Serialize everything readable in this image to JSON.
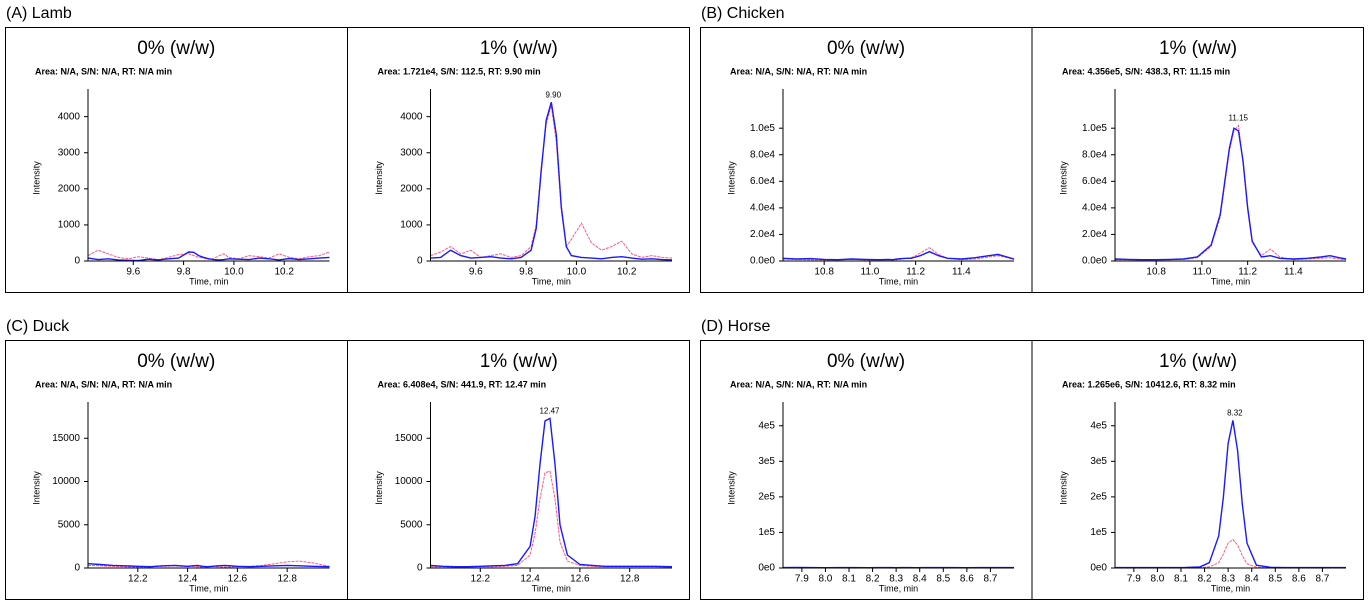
{
  "panel_labels": [
    "(A) Lamb",
    "(B) Chicken",
    "(C) Duck",
    "(D) Horse"
  ],
  "chart_data": [
    {
      "type": "line",
      "title": "0% (w/w)",
      "annotation": "Area: N/A, S/N: N/A, RT: N/A min",
      "ylabel": "Intensity",
      "xlabel": "Time, min",
      "x": [
        9.42,
        9.46,
        9.5,
        9.54,
        9.58,
        9.62,
        9.66,
        9.7,
        9.74,
        9.78,
        9.82,
        9.84,
        9.86,
        9.88,
        9.9,
        9.92,
        9.94,
        9.96,
        9.98,
        10.02,
        10.06,
        10.1,
        10.14,
        10.18,
        10.22,
        10.26,
        10.3,
        10.34,
        10.38
      ],
      "xlim": [
        9.42,
        10.38
      ],
      "xticks": [
        9.6,
        9.8,
        {
          "value": 10,
          "label": "10.0"
        },
        10.2
      ],
      "ylim": [
        0,
        4600
      ],
      "yticks": [
        0,
        1000,
        2000,
        3000,
        4000
      ],
      "series": [
        {
          "color": "#ff5a80",
          "values": [
            150,
            300,
            200,
            100,
            60,
            120,
            80,
            40,
            100,
            180,
            200,
            150,
            100,
            80,
            50,
            60,
            140,
            200,
            100,
            60,
            150,
            120,
            80,
            200,
            100,
            60,
            120,
            150,
            250
          ]
        },
        {
          "color": "#1a1aff",
          "values": [
            80,
            40,
            60,
            30,
            20,
            10,
            50,
            30,
            60,
            80,
            250,
            240,
            150,
            100,
            60,
            40,
            30,
            40,
            60,
            50,
            40,
            80,
            60,
            30,
            70,
            40,
            60,
            80,
            100
          ]
        }
      ]
    },
    {
      "type": "line",
      "title": "1% (w/w)",
      "annotation": "Area: 1.721e4, S/N: 112.5, RT: 9.90 min",
      "ylabel": "Intensity",
      "xlabel": "Time, min",
      "x": [
        9.42,
        9.46,
        9.5,
        9.54,
        9.58,
        9.62,
        9.66,
        9.7,
        9.74,
        9.78,
        9.82,
        9.84,
        9.86,
        9.88,
        9.9,
        9.92,
        9.94,
        9.96,
        9.98,
        10.02,
        10.06,
        10.1,
        10.14,
        10.18,
        10.22,
        10.26,
        10.3,
        10.34,
        10.38
      ],
      "xlim": [
        9.42,
        10.38
      ],
      "xticks": [
        9.6,
        9.8,
        {
          "value": 10,
          "label": "10.0"
        },
        10.2
      ],
      "ylim": [
        0,
        4600
      ],
      "yticks": [
        0,
        1000,
        2000,
        3000,
        4000
      ],
      "peak_label": {
        "label": "9.90",
        "x": 9.9,
        "y": 4400
      },
      "series": [
        {
          "color": "#ff5a80",
          "values": [
            150,
            250,
            400,
            200,
            300,
            100,
            150,
            200,
            100,
            150,
            400,
            1000,
            2600,
            3800,
            4300,
            3300,
            1400,
            400,
            600,
            1050,
            500,
            300,
            400,
            550,
            200,
            100,
            150,
            100,
            80
          ]
        },
        {
          "color": "#1a1aff",
          "values": [
            80,
            100,
            300,
            150,
            80,
            100,
            120,
            80,
            60,
            100,
            300,
            900,
            2500,
            3900,
            4400,
            3500,
            1500,
            400,
            150,
            100,
            80,
            60,
            100,
            120,
            80,
            50,
            60,
            40,
            30
          ]
        }
      ]
    },
    {
      "type": "line",
      "title": "0% (w/w)",
      "annotation": "Area: N/A, S/N: N/A, RT: N/A min",
      "ylabel": "Intensity",
      "xlabel": "Time, min",
      "x": [
        10.62,
        10.68,
        10.74,
        10.8,
        10.86,
        10.92,
        10.98,
        11.04,
        11.08,
        11.1,
        11.12,
        11.14,
        11.16,
        11.18,
        11.2,
        11.22,
        11.26,
        11.3,
        11.34,
        11.4,
        11.46,
        11.52,
        11.56,
        11.6,
        11.63
      ],
      "xlim": [
        10.62,
        11.63
      ],
      "xticks": [
        10.8,
        {
          "value": 11,
          "label": "11.0"
        },
        11.2,
        11.4
      ],
      "ylim": [
        0,
        125000
      ],
      "yticks": [
        {
          "value": 0,
          "label": "0.0e0"
        },
        {
          "value": 20000,
          "label": "2.0e4"
        },
        {
          "value": 40000,
          "label": "4.0e4"
        },
        {
          "value": 60000,
          "label": "6.0e4"
        },
        {
          "value": 80000,
          "label": "8.0e4"
        },
        {
          "value": 100000,
          "label": "1.0e5"
        }
      ],
      "series": [
        {
          "color": "#ff5a80",
          "values": [
            1500,
            1200,
            1000,
            800,
            1000,
            1200,
            800,
            1000,
            1000,
            800,
            1000,
            1500,
            2000,
            2500,
            4000,
            6000,
            10000,
            5000,
            2000,
            1000,
            1500,
            3000,
            4000,
            2500,
            1000
          ]
        },
        {
          "color": "#1a1aff",
          "values": [
            2000,
            1500,
            1800,
            1200,
            1000,
            1500,
            1200,
            1000,
            1200,
            1000,
            1500,
            1800,
            2000,
            2000,
            3000,
            4000,
            7000,
            4000,
            2000,
            1500,
            2500,
            4000,
            5000,
            3000,
            1500
          ]
        }
      ]
    },
    {
      "type": "line",
      "title": "1% (w/w)",
      "annotation": "Area: 4.356e5, S/N: 438.3, RT: 11.15 min",
      "ylabel": "Intensity",
      "xlabel": "Time, min",
      "x": [
        10.62,
        10.68,
        10.74,
        10.8,
        10.86,
        10.92,
        10.98,
        11.04,
        11.08,
        11.1,
        11.12,
        11.14,
        11.16,
        11.18,
        11.2,
        11.22,
        11.26,
        11.3,
        11.34,
        11.4,
        11.46,
        11.52,
        11.56,
        11.6,
        11.63
      ],
      "xlim": [
        10.62,
        11.63
      ],
      "xticks": [
        10.8,
        {
          "value": 11,
          "label": "11.0"
        },
        11.2,
        11.4
      ],
      "ylim": [
        0,
        125000
      ],
      "yticks": [
        {
          "value": 0,
          "label": "0.0e0"
        },
        {
          "value": 20000,
          "label": "2.0e4"
        },
        {
          "value": 40000,
          "label": "4.0e4"
        },
        {
          "value": 60000,
          "label": "6.0e4"
        },
        {
          "value": 80000,
          "label": "8.0e4"
        },
        {
          "value": 100000,
          "label": "1.0e5"
        }
      ],
      "peak_label": {
        "label": "11.15",
        "x": 11.15,
        "y": 102000
      },
      "series": [
        {
          "color": "#ff5a80",
          "values": [
            1000,
            1000,
            800,
            1000,
            1000,
            1200,
            2500,
            11000,
            33000,
            58000,
            83000,
            98000,
            102000,
            73000,
            38000,
            14000,
            4000,
            9000,
            3000,
            1000,
            1500,
            2000,
            2500,
            1500,
            1000
          ]
        },
        {
          "color": "#1a1aff",
          "values": [
            1500,
            1200,
            1000,
            1000,
            1200,
            1500,
            3000,
            12000,
            35000,
            60000,
            85000,
            100000,
            98000,
            75000,
            40000,
            15000,
            3000,
            4000,
            2000,
            1500,
            2000,
            3000,
            4000,
            2500,
            1500
          ]
        }
      ]
    },
    {
      "type": "line",
      "title": "0% (w/w)",
      "annotation": "Area: N/A, S/N: N/A, RT: N/A min",
      "ylabel": "Intensity",
      "xlabel": "Time, min",
      "x": [
        12.0,
        12.05,
        12.1,
        12.15,
        12.2,
        12.25,
        12.3,
        12.35,
        12.4,
        12.42,
        12.44,
        12.46,
        12.48,
        12.5,
        12.52,
        12.55,
        12.6,
        12.65,
        12.7,
        12.75,
        12.8,
        12.85,
        12.9,
        12.97
      ],
      "xlim": [
        12.0,
        12.97
      ],
      "xticks": [
        12.2,
        12.4,
        12.6,
        12.8
      ],
      "ylim": [
        0,
        18500
      ],
      "yticks": [
        0,
        5000,
        10000,
        15000
      ],
      "series": [
        {
          "color": "#ff5a80",
          "values": [
            300,
            250,
            200,
            150,
            100,
            150,
            200,
            250,
            150,
            200,
            150,
            100,
            150,
            200,
            150,
            100,
            150,
            200,
            300,
            500,
            700,
            800,
            600,
            200
          ]
        },
        {
          "color": "#1a1aff",
          "values": [
            500,
            400,
            300,
            250,
            200,
            150,
            250,
            300,
            200,
            250,
            300,
            200,
            150,
            200,
            250,
            300,
            200,
            150,
            200,
            250,
            300,
            250,
            200,
            150
          ]
        }
      ]
    },
    {
      "type": "line",
      "title": "1% (w/w)",
      "annotation": "Area: 6.408e4, S/N: 441.9, RT: 12.47 min",
      "ylabel": "Intensity",
      "xlabel": "Time, min",
      "x": [
        12.0,
        12.05,
        12.1,
        12.15,
        12.2,
        12.25,
        12.3,
        12.35,
        12.4,
        12.42,
        12.44,
        12.46,
        12.48,
        12.5,
        12.52,
        12.55,
        12.6,
        12.65,
        12.7,
        12.75,
        12.8,
        12.85,
        12.9,
        12.97
      ],
      "xlim": [
        12.0,
        12.97
      ],
      "xticks": [
        12.2,
        12.4,
        12.6,
        12.8
      ],
      "ylim": [
        0,
        18500
      ],
      "yticks": [
        0,
        5000,
        10000,
        15000
      ],
      "peak_label": {
        "label": "12.47",
        "x": 12.47,
        "y": 17300
      },
      "series": [
        {
          "color": "#ff5a80",
          "values": [
            150,
            150,
            100,
            100,
            150,
            150,
            200,
            300,
            1500,
            4000,
            8000,
            11000,
            11200,
            8000,
            3000,
            800,
            300,
            200,
            150,
            150,
            150,
            150,
            150,
            100
          ]
        },
        {
          "color": "#1a1aff",
          "values": [
            300,
            200,
            150,
            150,
            200,
            250,
            300,
            500,
            2500,
            6000,
            12000,
            17000,
            17300,
            12000,
            5000,
            1500,
            400,
            300,
            200,
            200,
            200,
            200,
            200,
            150
          ]
        }
      ]
    },
    {
      "type": "line",
      "title": "0% (w/w)",
      "annotation": "Area: N/A, S/N: N/A, RT: N/A min",
      "ylabel": "Intensity",
      "xlabel": "Time, min",
      "x": [
        7.82,
        7.88,
        7.94,
        8.0,
        8.06,
        8.12,
        8.18,
        8.22,
        8.26,
        8.28,
        8.3,
        8.32,
        8.34,
        8.36,
        8.38,
        8.42,
        8.48,
        8.54,
        8.6,
        8.66,
        8.72,
        8.8
      ],
      "xlim": [
        7.82,
        8.8
      ],
      "xticks": [
        7.9,
        {
          "value": 8,
          "label": "8.0"
        },
        8.1,
        8.2,
        8.3,
        8.4,
        8.5,
        8.6,
        8.7
      ],
      "ylim": [
        0,
        450000
      ],
      "yticks": [
        {
          "value": 0,
          "label": "0e0"
        },
        {
          "value": 100000,
          "label": "1e5"
        },
        {
          "value": 200000,
          "label": "2e5"
        },
        {
          "value": 300000,
          "label": "3e5"
        },
        {
          "value": 400000,
          "label": "4e5"
        }
      ],
      "series": [
        {
          "color": "#ff5a80",
          "values": [
            500,
            600,
            500,
            400,
            500,
            600,
            500,
            400,
            500,
            600,
            500,
            400,
            500,
            600,
            500,
            400,
            500,
            600,
            500,
            400,
            500,
            600
          ]
        },
        {
          "color": "#1a1aff",
          "values": [
            1000,
            1500,
            1000,
            800,
            1200,
            1000,
            900,
            1000,
            1100,
            1000,
            900,
            1000,
            1200,
            1000,
            900,
            1000,
            1100,
            1000,
            900,
            1000,
            1100,
            1000
          ]
        }
      ]
    },
    {
      "type": "line",
      "title": "1% (w/w)",
      "annotation": "Area: 1.265e6, S/N: 10412.6, RT: 8.32 min",
      "ylabel": "Intensity",
      "xlabel": "Time, min",
      "x": [
        7.82,
        7.88,
        7.94,
        8.0,
        8.06,
        8.12,
        8.18,
        8.22,
        8.26,
        8.28,
        8.3,
        8.32,
        8.34,
        8.36,
        8.38,
        8.42,
        8.48,
        8.54,
        8.6,
        8.66,
        8.72,
        8.8
      ],
      "xlim": [
        7.82,
        8.8
      ],
      "xticks": [
        7.9,
        {
          "value": 8,
          "label": "8.0"
        },
        8.1,
        8.2,
        8.3,
        8.4,
        8.5,
        8.6,
        8.7
      ],
      "ylim": [
        0,
        450000
      ],
      "yticks": [
        {
          "value": 0,
          "label": "0e0"
        },
        {
          "value": 100000,
          "label": "1e5"
        },
        {
          "value": 200000,
          "label": "2e5"
        },
        {
          "value": 300000,
          "label": "3e5"
        },
        {
          "value": 400000,
          "label": "4e5"
        }
      ],
      "peak_label": {
        "label": "8.32",
        "x": 8.32,
        "y": 415000
      },
      "series": [
        {
          "color": "#ff5a80",
          "values": [
            500,
            500,
            500,
            500,
            500,
            600,
            1000,
            3000,
            15000,
            40000,
            70000,
            80000,
            65000,
            35000,
            12000,
            2000,
            600,
            500,
            500,
            500,
            500,
            500
          ]
        },
        {
          "color": "#1a1aff",
          "values": [
            1000,
            1000,
            1000,
            1000,
            1000,
            1500,
            3000,
            15000,
            90000,
            200000,
            350000,
            415000,
            330000,
            180000,
            70000,
            8000,
            2000,
            1000,
            1000,
            1000,
            1000,
            1000
          ]
        }
      ]
    }
  ]
}
